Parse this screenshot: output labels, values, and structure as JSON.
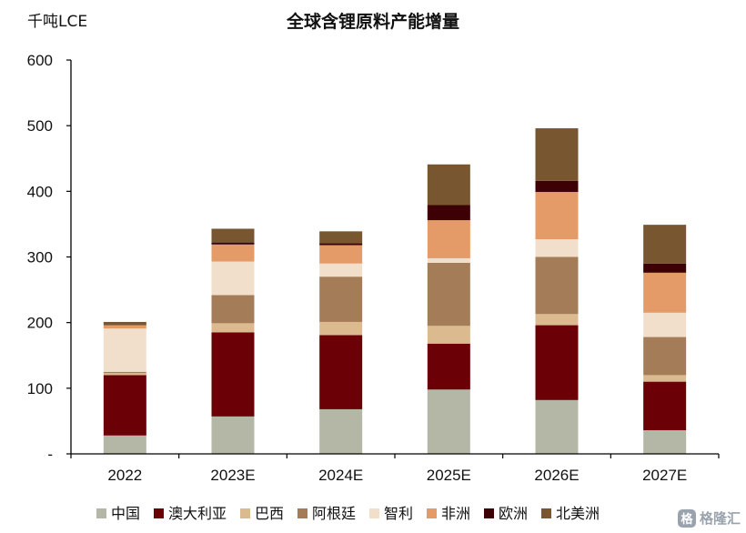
{
  "chart_data": {
    "type": "bar",
    "stacked": true,
    "title": "全球含锂原料产能增量",
    "ylabel": "千吨LCE",
    "xlabel": "",
    "ylim": [
      0,
      600
    ],
    "yticks": [
      0,
      100,
      200,
      300,
      400,
      500,
      600
    ],
    "ytick_labels": [
      "-",
      "100",
      "200",
      "300",
      "400",
      "500",
      "600"
    ],
    "grid": false,
    "legend_position": "bottom",
    "categories": [
      "2022",
      "2023E",
      "2024E",
      "2025E",
      "2026E",
      "2027E"
    ],
    "series": [
      {
        "name": "中国",
        "color": "#b5b7a6",
        "values": [
          28,
          57,
          68,
          98,
          82,
          36
        ]
      },
      {
        "name": "澳大利亚",
        "color": "#6b0006",
        "values": [
          92,
          128,
          113,
          70,
          114,
          74
        ]
      },
      {
        "name": "巴西",
        "color": "#dcba90",
        "values": [
          3,
          14,
          20,
          27,
          17,
          10
        ]
      },
      {
        "name": "阿根廷",
        "color": "#a57c58",
        "values": [
          2,
          43,
          69,
          96,
          87,
          58
        ]
      },
      {
        "name": "智利",
        "color": "#f1dfcb",
        "values": [
          66,
          51,
          20,
          7,
          27,
          37
        ]
      },
      {
        "name": "非洲",
        "color": "#e59b68",
        "values": [
          5,
          26,
          28,
          58,
          72,
          61
        ]
      },
      {
        "name": "欧洲",
        "color": "#3d0005",
        "values": [
          0,
          3,
          3,
          23,
          17,
          14
        ]
      },
      {
        "name": "北美洲",
        "color": "#775630",
        "values": [
          5,
          21,
          18,
          62,
          80,
          59
        ]
      }
    ]
  },
  "watermark": {
    "badge": "格",
    "text": "格隆汇"
  }
}
